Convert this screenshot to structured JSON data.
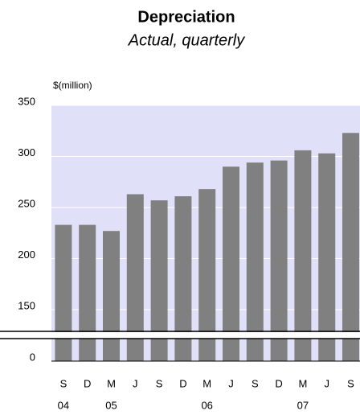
{
  "chart_data": {
    "type": "bar",
    "title": "Depreciation",
    "subtitle": "Actual, quarterly",
    "y_label": "$(million)",
    "categories": [
      "S",
      "D",
      "M",
      "J",
      "S",
      "D",
      "M",
      "J",
      "S",
      "D",
      "M",
      "J",
      "S"
    ],
    "years": [
      "04",
      null,
      "05",
      null,
      null,
      null,
      "06",
      null,
      null,
      null,
      "07",
      null,
      null
    ],
    "values": [
      233,
      233,
      227,
      263,
      257,
      261,
      268,
      290,
      294,
      296,
      306,
      303,
      323
    ],
    "color": "#808080",
    "background": "#e0e0f8",
    "ylim": [
      0,
      350
    ],
    "yticks": [
      0,
      150,
      200,
      250,
      300,
      350
    ],
    "axis_break": [
      0,
      150
    ],
    "grid": true
  }
}
